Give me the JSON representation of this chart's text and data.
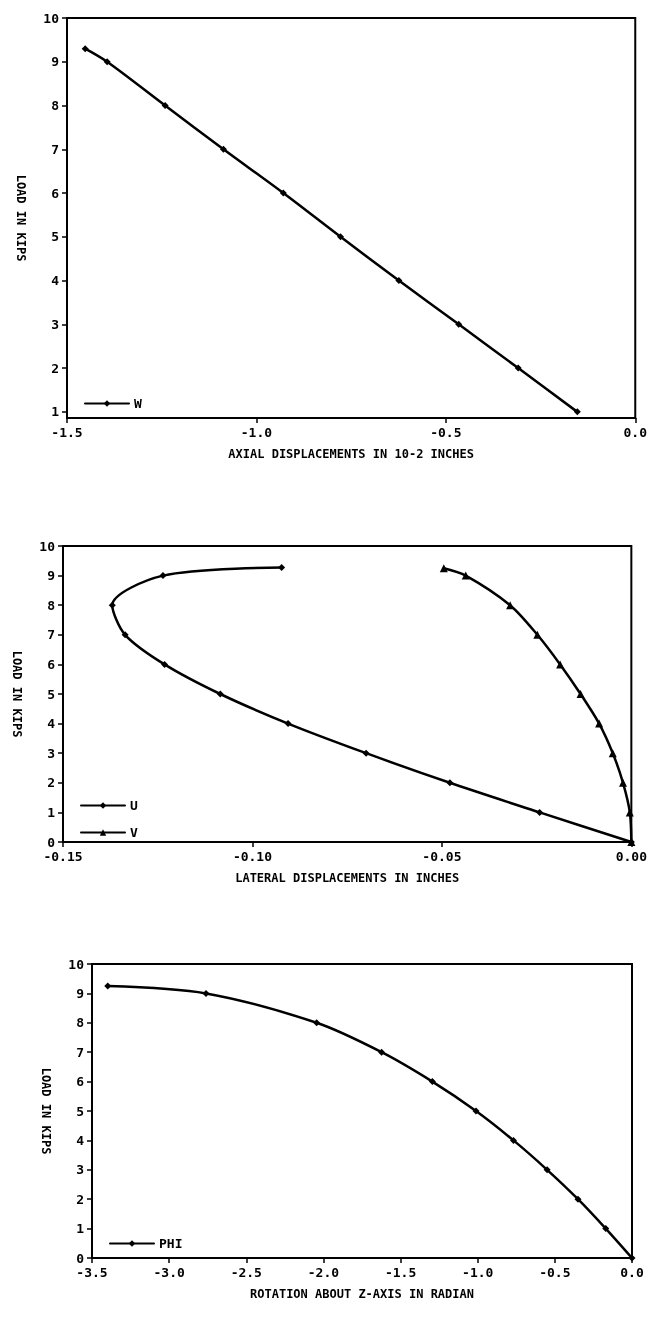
{
  "chart_data": [
    {
      "type": "line",
      "xlabel": "AXIAL DISPLACEMENTS IN 10-2 INCHES",
      "ylabel": "LOAD IN KIPS",
      "xlim": [
        -1.5,
        0
      ],
      "ylim": [
        0.86,
        10
      ],
      "xticks": [
        -1.5,
        {
          "value": -1,
          "label": "-1.0"
        },
        -0.5,
        {
          "value": 0,
          "label": "0.0"
        }
      ],
      "yticks": [
        1,
        2,
        3,
        4,
        5,
        6,
        7,
        8,
        9,
        10
      ],
      "series": [
        {
          "name": "W",
          "color": "#000000",
          "marker": "diamond",
          "x": [
            -1.452,
            -1.394,
            -1.241,
            -1.087,
            -0.929,
            -0.778,
            -0.624,
            -0.466,
            -0.309,
            -0.153
          ],
          "values": [
            9.3,
            9,
            8,
            7,
            6,
            5,
            4,
            3,
            2,
            1
          ]
        }
      ],
      "legend": "bottom left",
      "grid": false
    },
    {
      "type": "line",
      "xlabel": "LATERAL DISPLACEMENTS IN INCHES",
      "ylabel": "LOAD IN KIPS",
      "xlim": [
        -0.15,
        0
      ],
      "ylim": [
        0,
        10
      ],
      "xticks": [
        -0.15,
        {
          "value": -0.1,
          "label": "-0.10"
        },
        -0.05,
        {
          "value": 0,
          "label": "0.00"
        }
      ],
      "yticks": [
        0,
        1,
        2,
        3,
        4,
        5,
        6,
        7,
        8,
        9,
        10
      ],
      "series": [
        {
          "name": "U",
          "color": "#000000",
          "marker": "diamond",
          "x": [
            -0.0923,
            -0.1236,
            -0.137,
            -0.1336,
            -0.1232,
            -0.1085,
            -0.0906,
            -0.07,
            -0.0479,
            -0.0242,
            0
          ],
          "values": [
            9.27,
            9,
            8,
            7,
            6,
            5,
            4,
            3,
            2,
            1,
            0
          ]
        },
        {
          "name": "V",
          "color": "#000000",
          "marker": "triangle",
          "x": [
            -0.0495,
            -0.0437,
            -0.032,
            -0.0248,
            -0.0188,
            -0.0134,
            -0.0085,
            -0.0049,
            -0.0022,
            -0.0004,
            0
          ],
          "values": [
            9.25,
            9,
            8,
            7,
            6,
            5,
            4,
            3,
            2,
            1,
            0
          ]
        }
      ],
      "legend": "bottom left",
      "grid": false
    },
    {
      "type": "line",
      "xlabel": "ROTATION ABOUT Z-AXIS IN RADIAN",
      "ylabel": "LOAD IN KIPS",
      "xlim": [
        -3.5,
        0
      ],
      "ylim": [
        0,
        10
      ],
      "xticks": [
        -3.5,
        {
          "value": -3,
          "label": "-3.0"
        },
        -2.5,
        {
          "value": -2,
          "label": "-2.0"
        },
        -1.5,
        {
          "value": -1,
          "label": "-1.0"
        },
        -0.5,
        {
          "value": 0,
          "label": "0.0"
        }
      ],
      "yticks": [
        0,
        1,
        2,
        3,
        4,
        5,
        6,
        7,
        8,
        9,
        10
      ],
      "series": [
        {
          "name": "PHI",
          "color": "#000000",
          "marker": "diamond",
          "x": [
            -3.398,
            -2.761,
            -2.044,
            -1.623,
            -1.294,
            -1.011,
            -0.768,
            -0.55,
            -0.35,
            -0.17,
            0
          ],
          "values": [
            9.25,
            9,
            8,
            7,
            6,
            5,
            4,
            3,
            2,
            1,
            0
          ]
        }
      ],
      "legend": "bottom left",
      "grid": false
    }
  ]
}
